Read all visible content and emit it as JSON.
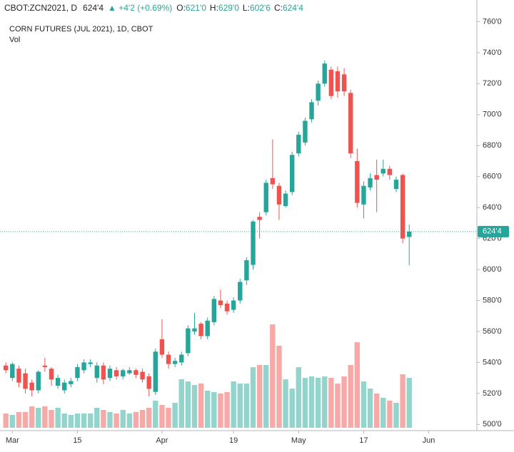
{
  "chart_data": {
    "type": "candlestick",
    "header": {
      "symbol": "CBOT:ZCN2021, D",
      "last": "624'4",
      "change": "▲ +4'2 (+0.69%)",
      "ohlc": [
        {
          "key": "O:",
          "value": "621'0"
        },
        {
          "key": "H:",
          "value": "629'0"
        },
        {
          "key": "L:",
          "value": "602'6"
        },
        {
          "key": "C:",
          "value": "624'4"
        }
      ]
    },
    "title": "CORN FUTURES (JUL 2021), 1D, CBOT",
    "volume_label": "Vol",
    "up_color": "#26a69a",
    "down_color": "#ef5350",
    "up_volume_color": "#93d4cc",
    "down_volume_color": "#f7a9a7",
    "x": [
      0,
      1,
      2,
      3,
      4,
      5,
      6,
      7,
      8,
      9,
      10,
      11,
      12,
      13,
      14,
      15,
      16,
      17,
      18,
      19,
      20,
      21,
      22,
      23,
      24,
      25,
      26,
      27,
      28,
      29,
      30,
      31,
      32,
      33,
      34,
      35,
      36,
      37,
      38,
      39,
      40,
      41,
      42,
      43,
      44,
      45,
      46,
      47,
      48,
      49,
      50,
      51,
      52,
      53,
      54,
      55,
      56,
      57,
      58,
      59,
      60,
      61,
      62
    ],
    "open": [
      538,
      530,
      536,
      533,
      527,
      522,
      538,
      536,
      525,
      522,
      526,
      530,
      535,
      539,
      530,
      538,
      530,
      535,
      531,
      533,
      535,
      534,
      531,
      521,
      555,
      545,
      539,
      540,
      546,
      560,
      565,
      557,
      566,
      580,
      578,
      574,
      580,
      593,
      603,
      634,
      637,
      659,
      654,
      641,
      650,
      675,
      682,
      697,
      709,
      720,
      729,
      728,
      726,
      714,
      670,
      642,
      653,
      661,
      662,
      665,
      652,
      661,
      621
    ],
    "high": [
      540,
      540,
      538,
      536,
      529,
      535,
      543,
      537,
      532,
      529,
      530,
      539,
      542,
      542,
      540,
      540,
      538,
      537,
      536,
      537,
      536,
      536,
      533,
      549,
      568,
      547,
      543,
      547,
      564,
      572,
      566,
      569,
      583,
      587,
      580,
      582,
      594,
      608,
      632,
      637,
      658,
      684,
      656,
      651,
      676,
      689,
      698,
      710,
      722,
      735,
      731,
      731,
      730,
      716,
      678,
      657,
      662,
      671,
      671,
      667,
      660,
      662,
      629
    ],
    "low": [
      533,
      528,
      524,
      520,
      518,
      520,
      534,
      525,
      523,
      520,
      524,
      528,
      533,
      537,
      527,
      526,
      528,
      529,
      529,
      532,
      530,
      527,
      518,
      519,
      543,
      536,
      537,
      538,
      544,
      558,
      555,
      555,
      564,
      575,
      571,
      572,
      578,
      590,
      600,
      620,
      635,
      652,
      632,
      640,
      648,
      673,
      680,
      695,
      706,
      718,
      710,
      711,
      712,
      672,
      640,
      633,
      651,
      637,
      660,
      658,
      650,
      617,
      602.75
    ],
    "close": [
      535,
      539,
      527,
      523,
      522,
      534,
      537,
      529,
      530,
      527,
      528,
      537,
      540,
      540,
      538,
      529,
      536,
      531,
      535,
      535,
      532,
      529,
      523,
      547,
      545,
      539,
      541,
      545,
      562,
      562,
      557,
      567,
      581,
      577,
      573,
      580,
      592,
      606,
      631,
      632,
      656,
      655,
      642,
      649,
      674,
      687,
      696,
      708,
      720,
      733,
      712,
      715,
      715,
      675,
      643,
      654,
      659,
      658,
      665,
      661,
      658,
      620,
      624.5
    ],
    "volume": [
      20,
      18,
      22,
      22,
      30,
      28,
      30,
      25,
      28,
      20,
      18,
      20,
      20,
      20,
      28,
      25,
      22,
      20,
      25,
      20,
      22,
      25,
      28,
      38,
      32,
      28,
      35,
      68,
      65,
      60,
      62,
      52,
      50,
      48,
      50,
      65,
      62,
      62,
      85,
      88,
      88,
      145,
      115,
      68,
      55,
      85,
      70,
      72,
      70,
      72,
      70,
      62,
      72,
      88,
      120,
      65,
      55,
      48,
      42,
      38,
      35,
      75,
      70
    ],
    "xlim": [
      -0.9,
      72.4
    ],
    "xticks": [
      {
        "value": 1,
        "label": "Mar"
      },
      {
        "value": 11,
        "label": "15"
      },
      {
        "value": 24,
        "label": "Apr"
      },
      {
        "value": 35,
        "label": "19"
      },
      {
        "value": 45,
        "label": "May"
      },
      {
        "value": 55,
        "label": "17"
      },
      {
        "value": 65,
        "label": "Jun"
      }
    ],
    "ylim": [
      496,
      774
    ],
    "yticks": [
      {
        "value": 500,
        "label": "500'0"
      },
      {
        "value": 520,
        "label": "520'0"
      },
      {
        "value": 540,
        "label": "540'0"
      },
      {
        "value": 560,
        "label": "560'0"
      },
      {
        "value": 580,
        "label": "580'0"
      },
      {
        "value": 600,
        "label": "600'0"
      },
      {
        "value": 620,
        "label": "620'0"
      },
      {
        "value": 640,
        "label": "640'0"
      },
      {
        "value": 660,
        "label": "660'0"
      },
      {
        "value": 680,
        "label": "680'0"
      },
      {
        "value": 700,
        "label": "700'0"
      },
      {
        "value": 720,
        "label": "720'0"
      },
      {
        "value": 740,
        "label": "740'0"
      },
      {
        "value": 760,
        "label": "760'0"
      }
    ],
    "last_price": {
      "value": 624.5,
      "label": "624'4"
    }
  }
}
